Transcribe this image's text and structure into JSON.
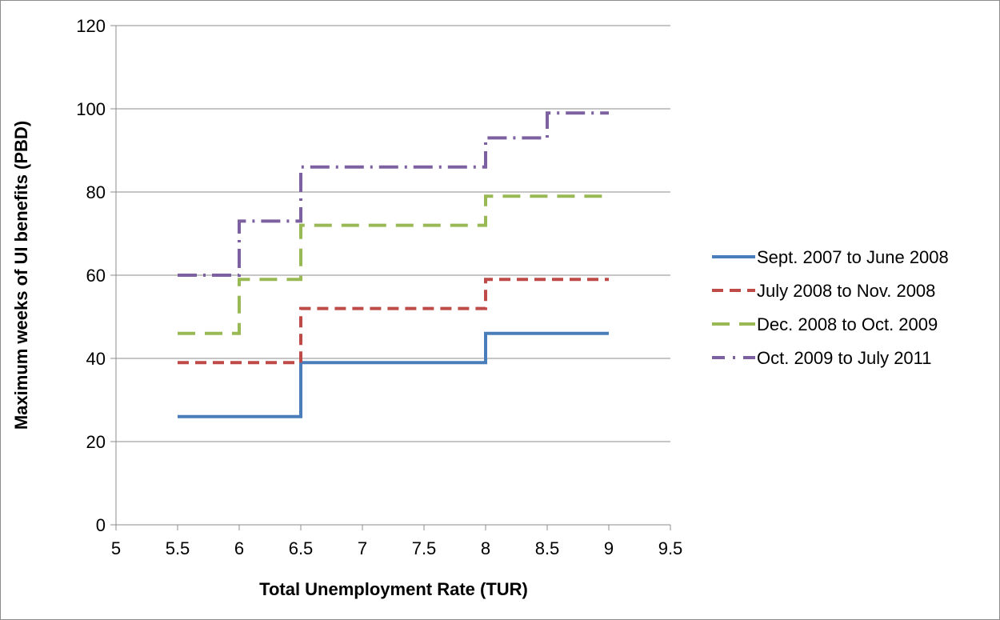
{
  "chart_data": {
    "type": "line",
    "title": "",
    "xlabel": "Total Unemployment Rate (TUR)",
    "ylabel": "Maximum weeks of UI benefits (PBD)",
    "xlim": [
      5,
      9.5
    ],
    "ylim": [
      0,
      120
    ],
    "x_ticks": [
      "5",
      "5.5",
      "6",
      "6.5",
      "7",
      "7.5",
      "8",
      "8.5",
      "9",
      "9.5"
    ],
    "y_ticks": [
      "0",
      "20",
      "40",
      "60",
      "80",
      "100",
      "120"
    ],
    "grid": "horizontal",
    "legend_position": "right",
    "series": [
      {
        "name": "Sept. 2007 to June 2008",
        "color": "#4a7ebb",
        "dash": "solid",
        "points": [
          [
            5.5,
            26
          ],
          [
            6.5,
            26
          ],
          [
            6.5,
            39
          ],
          [
            8,
            39
          ],
          [
            8,
            46
          ],
          [
            9,
            46
          ]
        ]
      },
      {
        "name": "July 2008 to Nov. 2008",
        "color": "#be4b48",
        "dash": "dash",
        "points": [
          [
            5.5,
            39
          ],
          [
            6.5,
            39
          ],
          [
            6.5,
            52
          ],
          [
            8,
            52
          ],
          [
            8,
            59
          ],
          [
            9,
            59
          ]
        ]
      },
      {
        "name": "Dec. 2008 to Oct. 2009",
        "color": "#98b954",
        "dash": "longdash",
        "points": [
          [
            5.5,
            46
          ],
          [
            6,
            46
          ],
          [
            6,
            59
          ],
          [
            6.5,
            59
          ],
          [
            6.5,
            72
          ],
          [
            8,
            72
          ],
          [
            8,
            79
          ],
          [
            9,
            79
          ]
        ]
      },
      {
        "name": "Oct. 2009 to July 2011",
        "color": "#7d60a0",
        "dash": "dashdot",
        "points": [
          [
            5.5,
            60
          ],
          [
            6,
            60
          ],
          [
            6,
            73
          ],
          [
            6.5,
            73
          ],
          [
            6.5,
            86
          ],
          [
            8,
            86
          ],
          [
            8,
            93
          ],
          [
            8.5,
            93
          ],
          [
            8.5,
            99
          ],
          [
            9,
            99
          ]
        ]
      }
    ]
  }
}
